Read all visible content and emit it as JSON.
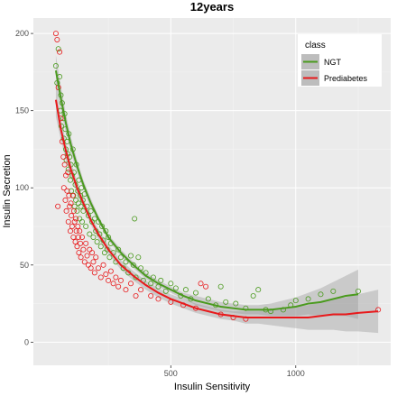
{
  "chart_data": {
    "type": "scatter",
    "title": "12years",
    "xlabel": "Insulin Sensitivity",
    "ylabel": "Insulin Secretion",
    "xlim": [
      -50,
      1380
    ],
    "ylim": [
      -15,
      210
    ],
    "x_ticks": [
      500,
      1000
    ],
    "y_ticks": [
      0,
      50,
      100,
      150,
      200
    ],
    "grid": true,
    "legend": {
      "title": "class",
      "position": "top-right"
    },
    "series": [
      {
        "name": "NGT",
        "color": "#4a9a1e",
        "smooth": [
          [
            40,
            176
          ],
          [
            60,
            158
          ],
          [
            80,
            142
          ],
          [
            100,
            128
          ],
          [
            125,
            114
          ],
          [
            150,
            102
          ],
          [
            180,
            90
          ],
          [
            210,
            80
          ],
          [
            250,
            68
          ],
          [
            300,
            58
          ],
          [
            350,
            50
          ],
          [
            400,
            43
          ],
          [
            450,
            38
          ],
          [
            500,
            34
          ],
          [
            550,
            30
          ],
          [
            600,
            27
          ],
          [
            650,
            25
          ],
          [
            700,
            23
          ],
          [
            750,
            22
          ],
          [
            800,
            21
          ],
          [
            850,
            21
          ],
          [
            900,
            21
          ],
          [
            950,
            22
          ],
          [
            1000,
            23
          ],
          [
            1050,
            25
          ],
          [
            1100,
            26
          ],
          [
            1150,
            28
          ],
          [
            1200,
            30
          ],
          [
            1250,
            31
          ]
        ],
        "band": [
          [
            40,
            186,
            166
          ],
          [
            60,
            166,
            150
          ],
          [
            80,
            148,
            136
          ],
          [
            100,
            133,
            123
          ],
          [
            125,
            118,
            110
          ],
          [
            150,
            105,
            99
          ],
          [
            180,
            93,
            87
          ],
          [
            210,
            82,
            78
          ],
          [
            250,
            70,
            66
          ],
          [
            300,
            60,
            56
          ],
          [
            350,
            52,
            48
          ],
          [
            400,
            45,
            41
          ],
          [
            450,
            40,
            36
          ],
          [
            500,
            36,
            32
          ],
          [
            550,
            32,
            28
          ],
          [
            600,
            30,
            24
          ],
          [
            650,
            28,
            22
          ],
          [
            700,
            26,
            20
          ],
          [
            750,
            25,
            19
          ],
          [
            800,
            24,
            18
          ],
          [
            850,
            24,
            18
          ],
          [
            900,
            25,
            17
          ],
          [
            950,
            27,
            17
          ],
          [
            1000,
            29,
            17
          ],
          [
            1050,
            32,
            18
          ],
          [
            1100,
            35,
            17
          ],
          [
            1150,
            39,
            17
          ],
          [
            1200,
            43,
            17
          ],
          [
            1250,
            47,
            15
          ]
        ],
        "points": [
          [
            40,
            179
          ],
          [
            45,
            168
          ],
          [
            50,
            190
          ],
          [
            55,
            172
          ],
          [
            60,
            160
          ],
          [
            58,
            150
          ],
          [
            62,
            140
          ],
          [
            65,
            155
          ],
          [
            70,
            145
          ],
          [
            72,
            132
          ],
          [
            75,
            148
          ],
          [
            78,
            138
          ],
          [
            80,
            125
          ],
          [
            82,
            118
          ],
          [
            85,
            130
          ],
          [
            88,
            122
          ],
          [
            90,
            112
          ],
          [
            92,
            135
          ],
          [
            95,
            120
          ],
          [
            98,
            105
          ],
          [
            100,
            115
          ],
          [
            102,
            98
          ],
          [
            105,
            108
          ],
          [
            108,
            125
          ],
          [
            110,
            95
          ],
          [
            112,
            110
          ],
          [
            115,
            88
          ],
          [
            118,
            102
          ],
          [
            120,
            92
          ],
          [
            122,
            115
          ],
          [
            125,
            85
          ],
          [
            128,
            98
          ],
          [
            130,
            90
          ],
          [
            132,
            105
          ],
          [
            135,
            80
          ],
          [
            138,
            95
          ],
          [
            140,
            88
          ],
          [
            142,
            100
          ],
          [
            145,
            78
          ],
          [
            148,
            92
          ],
          [
            150,
            85
          ],
          [
            155,
            96
          ],
          [
            160,
            75
          ],
          [
            165,
            88
          ],
          [
            170,
            82
          ],
          [
            175,
            70
          ],
          [
            180,
            85
          ],
          [
            185,
            78
          ],
          [
            190,
            68
          ],
          [
            195,
            80
          ],
          [
            200,
            72
          ],
          [
            205,
            65
          ],
          [
            210,
            78
          ],
          [
            215,
            70
          ],
          [
            220,
            62
          ],
          [
            225,
            75
          ],
          [
            230,
            66
          ],
          [
            235,
            58
          ],
          [
            240,
            72
          ],
          [
            245,
            60
          ],
          [
            250,
            68
          ],
          [
            255,
            55
          ],
          [
            260,
            64
          ],
          [
            270,
            58
          ],
          [
            280,
            52
          ],
          [
            290,
            60
          ],
          [
            300,
            55
          ],
          [
            310,
            48
          ],
          [
            320,
            52
          ],
          [
            330,
            45
          ],
          [
            340,
            56
          ],
          [
            350,
            50
          ],
          [
            355,
            80
          ],
          [
            360,
            42
          ],
          [
            370,
            55
          ],
          [
            380,
            48
          ],
          [
            390,
            40
          ],
          [
            400,
            45
          ],
          [
            420,
            38
          ],
          [
            430,
            42
          ],
          [
            450,
            36
          ],
          [
            460,
            40
          ],
          [
            480,
            33
          ],
          [
            500,
            38
          ],
          [
            520,
            35
          ],
          [
            540,
            30
          ],
          [
            560,
            34
          ],
          [
            580,
            28
          ],
          [
            600,
            32
          ],
          [
            650,
            28
          ],
          [
            680,
            24
          ],
          [
            700,
            36
          ],
          [
            720,
            26
          ],
          [
            760,
            25
          ],
          [
            800,
            22
          ],
          [
            830,
            30
          ],
          [
            850,
            34
          ],
          [
            880,
            21
          ],
          [
            900,
            20
          ],
          [
            950,
            21
          ],
          [
            980,
            24
          ],
          [
            1000,
            27
          ],
          [
            1050,
            28
          ],
          [
            1100,
            31
          ],
          [
            1150,
            33
          ],
          [
            1250,
            33
          ]
        ]
      },
      {
        "name": "Prediabetes",
        "color": "#e8191b",
        "smooth": [
          [
            40,
            157
          ],
          [
            60,
            138
          ],
          [
            80,
            124
          ],
          [
            100,
            112
          ],
          [
            125,
            100
          ],
          [
            150,
            90
          ],
          [
            180,
            79
          ],
          [
            210,
            70
          ],
          [
            250,
            60
          ],
          [
            300,
            50
          ],
          [
            350,
            43
          ],
          [
            400,
            37
          ],
          [
            450,
            32
          ],
          [
            500,
            28
          ],
          [
            550,
            25
          ],
          [
            600,
            22
          ],
          [
            650,
            20
          ],
          [
            700,
            18
          ],
          [
            750,
            17
          ],
          [
            800,
            16
          ],
          [
            850,
            16
          ],
          [
            900,
            16
          ],
          [
            950,
            16
          ],
          [
            1000,
            16
          ],
          [
            1050,
            16
          ],
          [
            1100,
            17
          ],
          [
            1150,
            18
          ],
          [
            1200,
            18
          ],
          [
            1250,
            19
          ],
          [
            1330,
            20
          ]
        ],
        "band": [
          [
            40,
            168,
            146
          ],
          [
            60,
            145,
            131
          ],
          [
            80,
            130,
            118
          ],
          [
            100,
            117,
            107
          ],
          [
            125,
            104,
            96
          ],
          [
            150,
            93,
            87
          ],
          [
            180,
            82,
            76
          ],
          [
            210,
            73,
            67
          ],
          [
            250,
            63,
            57
          ],
          [
            300,
            53,
            47
          ],
          [
            350,
            46,
            40
          ],
          [
            400,
            40,
            34
          ],
          [
            450,
            35,
            29
          ],
          [
            500,
            31,
            25
          ],
          [
            550,
            28,
            22
          ],
          [
            600,
            25,
            19
          ],
          [
            650,
            23,
            17
          ],
          [
            700,
            21,
            15
          ],
          [
            750,
            20,
            14
          ],
          [
            800,
            20,
            12
          ],
          [
            850,
            20,
            12
          ],
          [
            900,
            21,
            11
          ],
          [
            950,
            22,
            10
          ],
          [
            1000,
            23,
            9
          ],
          [
            1050,
            24,
            8
          ],
          [
            1100,
            26,
            8
          ],
          [
            1150,
            28,
            8
          ],
          [
            1200,
            29,
            7
          ],
          [
            1250,
            31,
            7
          ],
          [
            1330,
            34,
            6
          ]
        ],
        "points": [
          [
            40,
            200
          ],
          [
            45,
            196
          ],
          [
            50,
            165
          ],
          [
            55,
            188
          ],
          [
            48,
            88
          ],
          [
            60,
            145
          ],
          [
            65,
            130
          ],
          [
            70,
            120
          ],
          [
            72,
            100
          ],
          [
            75,
            115
          ],
          [
            78,
            92
          ],
          [
            80,
            108
          ],
          [
            82,
            85
          ],
          [
            85,
            98
          ],
          [
            88,
            110
          ],
          [
            90,
            78
          ],
          [
            92,
            95
          ],
          [
            95,
            88
          ],
          [
            98,
            72
          ],
          [
            100,
            90
          ],
          [
            102,
            82
          ],
          [
            105,
            75
          ],
          [
            108,
            95
          ],
          [
            110,
            68
          ],
          [
            112,
            85
          ],
          [
            115,
            78
          ],
          [
            118,
            65
          ],
          [
            120,
            80
          ],
          [
            122,
            72
          ],
          [
            125,
            62
          ],
          [
            128,
            75
          ],
          [
            130,
            68
          ],
          [
            132,
            58
          ],
          [
            135,
            72
          ],
          [
            138,
            64
          ],
          [
            140,
            55
          ],
          [
            145,
            68
          ],
          [
            150,
            60
          ],
          [
            155,
            52
          ],
          [
            160,
            64
          ],
          [
            165,
            56
          ],
          [
            170,
            50
          ],
          [
            175,
            60
          ],
          [
            180,
            48
          ],
          [
            185,
            58
          ],
          [
            190,
            52
          ],
          [
            195,
            45
          ],
          [
            200,
            55
          ],
          [
            210,
            48
          ],
          [
            220,
            42
          ],
          [
            230,
            50
          ],
          [
            240,
            44
          ],
          [
            250,
            40
          ],
          [
            260,
            46
          ],
          [
            270,
            38
          ],
          [
            280,
            42
          ],
          [
            290,
            36
          ],
          [
            300,
            40
          ],
          [
            320,
            34
          ],
          [
            340,
            38
          ],
          [
            360,
            30
          ],
          [
            380,
            34
          ],
          [
            420,
            30
          ],
          [
            450,
            28
          ],
          [
            500,
            26
          ],
          [
            550,
            24
          ],
          [
            600,
            22
          ],
          [
            620,
            38
          ],
          [
            640,
            36
          ],
          [
            700,
            18
          ],
          [
            750,
            16
          ],
          [
            800,
            15
          ],
          [
            1330,
            21
          ]
        ]
      }
    ]
  },
  "legend_swatches": {
    "label_ngt": "NGT",
    "label_prediabetes": "Prediabetes",
    "panel_color": "#ebebeb",
    "band_color": "#bdbdbd"
  }
}
